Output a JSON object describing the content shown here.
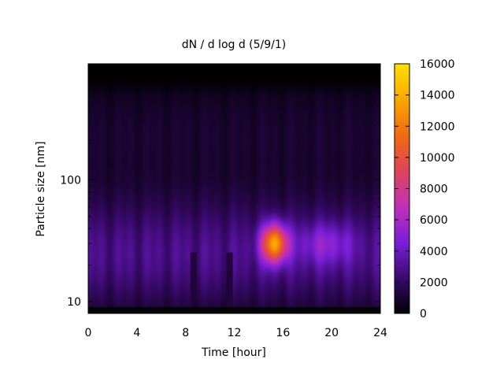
{
  "chart_data": {
    "type": "heatmap",
    "title": "dN / d log d (5/9/1)",
    "xlabel": "Time [hour]",
    "ylabel": "Particle size [nm]",
    "x_ticks": [
      0,
      4,
      8,
      12,
      16,
      20,
      24
    ],
    "x_tick_labels": [
      "0",
      "4",
      "8",
      "12",
      "16",
      "20",
      "24"
    ],
    "xlim": [
      0,
      24
    ],
    "y_scale": "log",
    "y_ticks": [
      10,
      100
    ],
    "y_tick_labels": [
      "10",
      "100"
    ],
    "ylim": [
      8,
      900
    ],
    "colorbar": {
      "range": [
        0,
        16000
      ],
      "ticks": [
        0,
        2000,
        4000,
        6000,
        8000,
        10000,
        12000,
        14000,
        16000
      ],
      "tick_labels": [
        "0",
        "2000",
        "4000",
        "6000",
        "8000",
        "10000",
        "12000",
        "14000",
        "16000"
      ],
      "colormap": [
        "#000000",
        "#3b0a6e",
        "#7a1fd8",
        "#c230b8",
        "#e0445a",
        "#f06a10",
        "#f9a800",
        "#ffe000"
      ]
    },
    "features": [
      {
        "name": "background_band",
        "size_range_nm": [
          10,
          60
        ],
        "value_approx": 3500
      },
      {
        "name": "burst_peak",
        "time_hour": 15.3,
        "size_nm": 30,
        "value_approx": 14500
      },
      {
        "name": "low_streak",
        "time_hour": 8.6,
        "value_approx": 800
      },
      {
        "name": "low_streak",
        "time_hour": 11.6,
        "value_approx": 800
      },
      {
        "name": "upper_cutoff",
        "size_nm_above": 700,
        "value_approx": 0
      }
    ],
    "grid": false,
    "legend": "colorbar-right"
  }
}
